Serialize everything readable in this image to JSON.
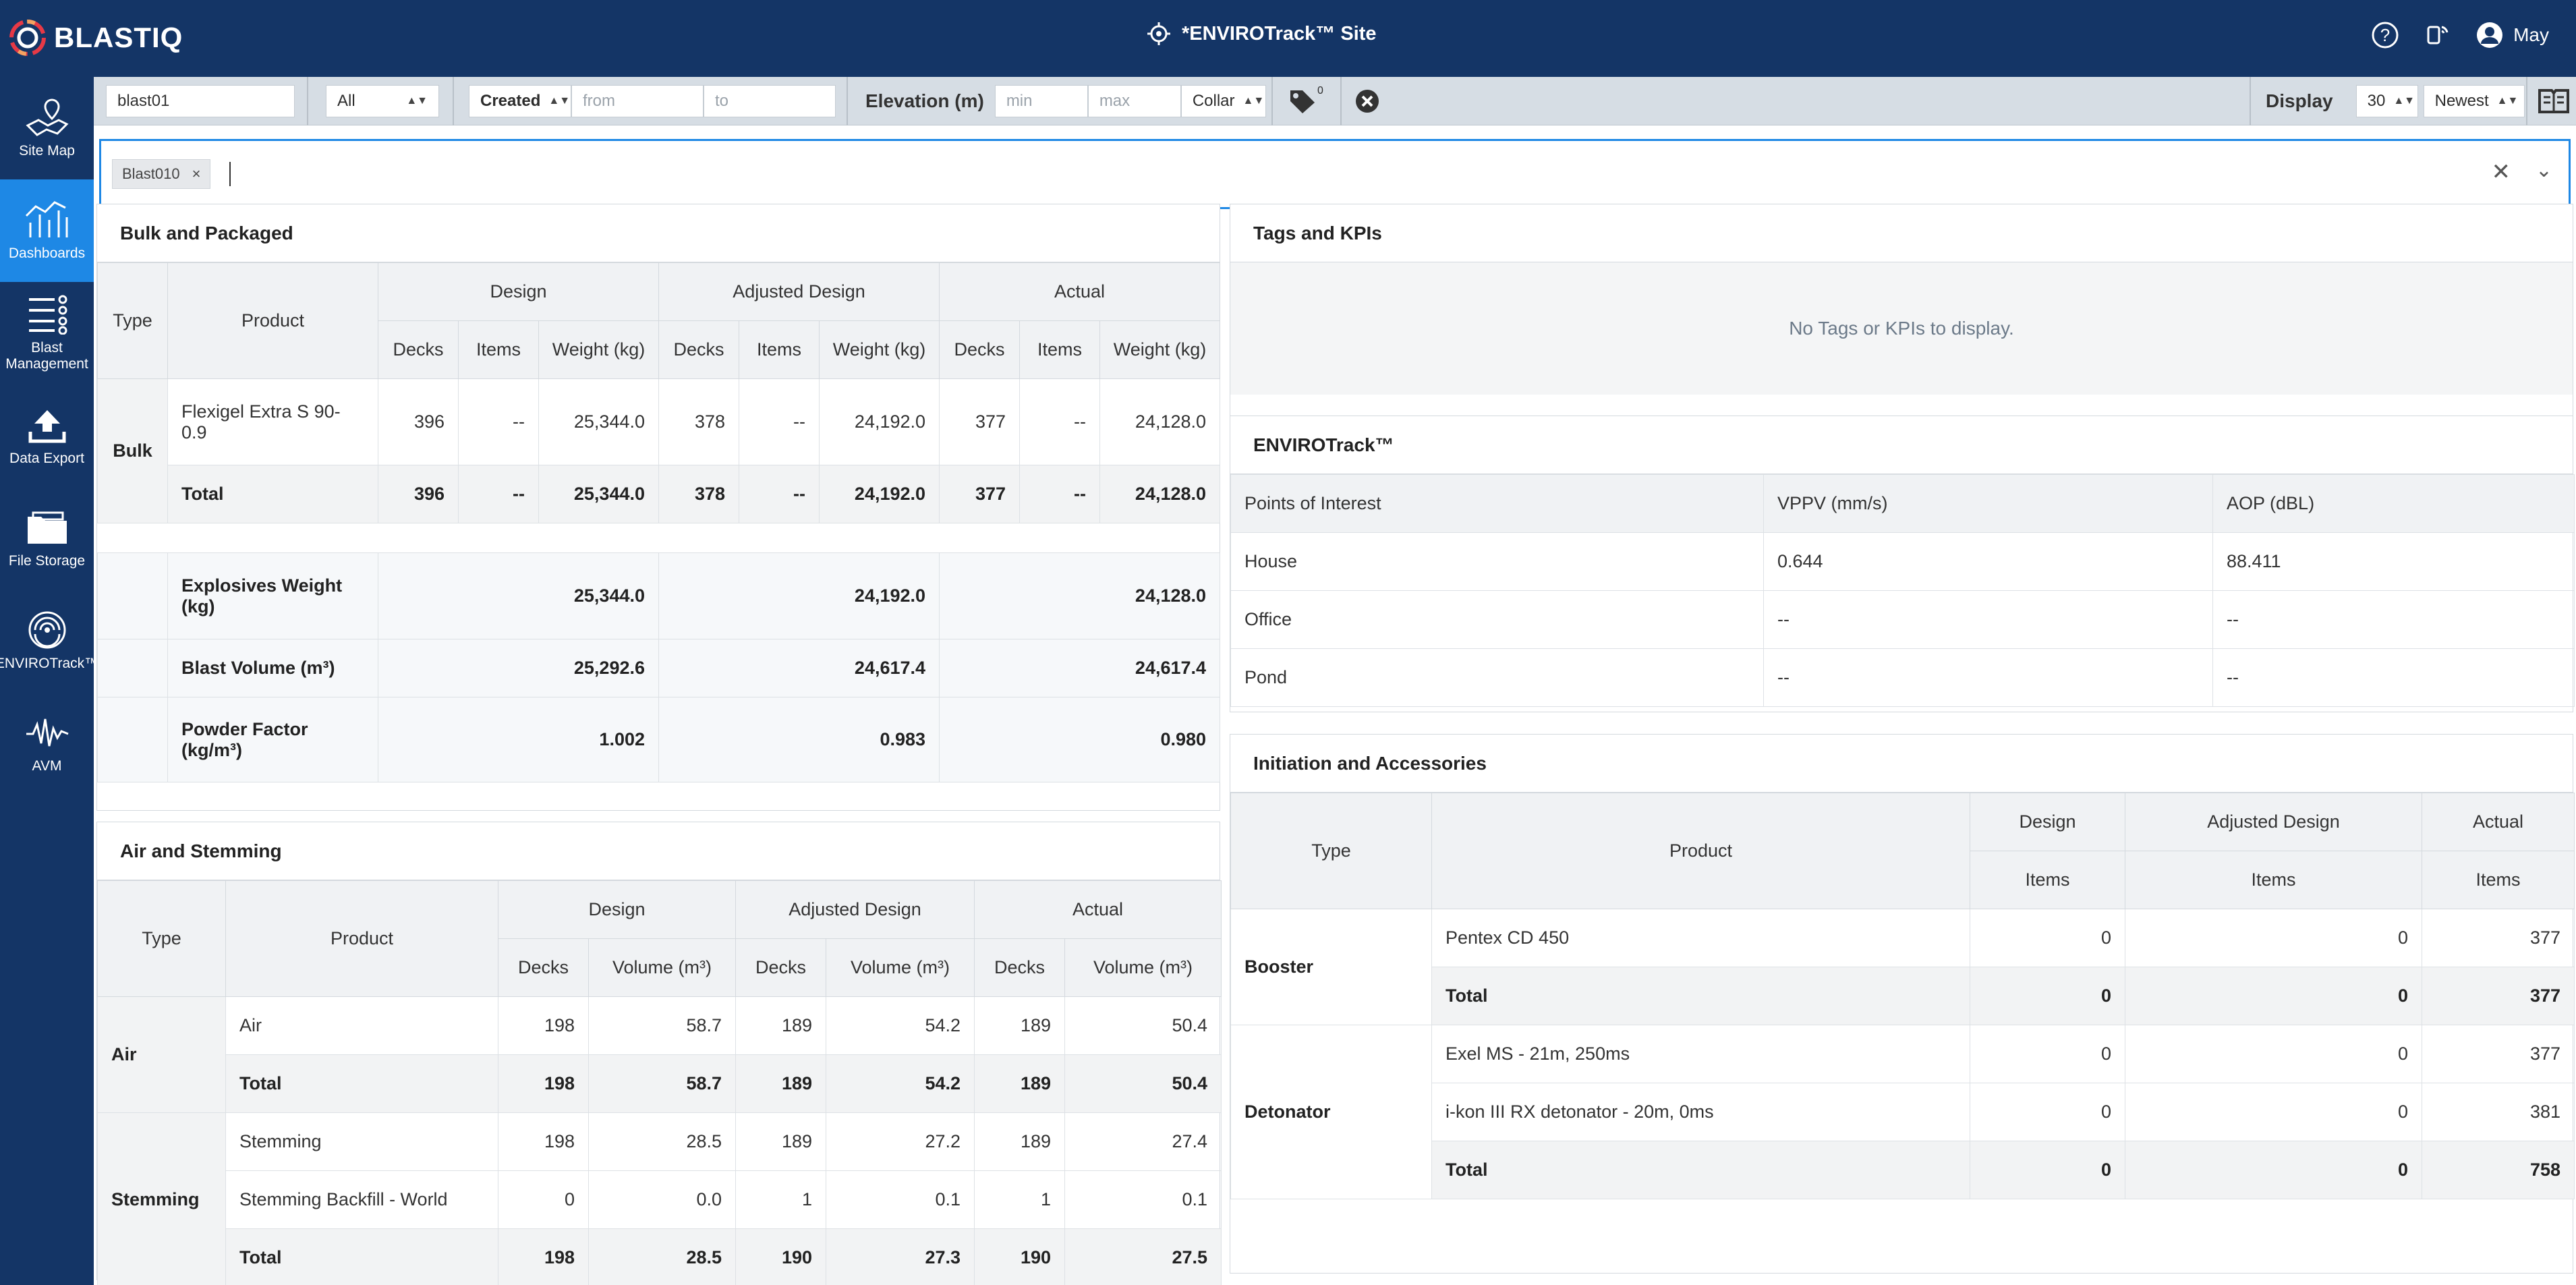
{
  "app": {
    "logo": "BLAST",
    "logo_suffix": "IQ",
    "site_title": "*ENVIROTrack™ Site",
    "user_name": "May"
  },
  "sidebar": {
    "items": [
      {
        "label": "Site Map",
        "icon": "map-icon",
        "active": false
      },
      {
        "label": "Dashboards",
        "icon": "dashboard-icon",
        "active": true
      },
      {
        "label": "Blast Management",
        "icon": "list-icon",
        "active": false
      },
      {
        "label": "Data Export",
        "icon": "upload-icon",
        "active": false
      },
      {
        "label": "File Storage",
        "icon": "folder-icon",
        "active": false
      },
      {
        "label": "ENVIROTrack™",
        "icon": "signal-icon",
        "active": false
      },
      {
        "label": "AVM",
        "icon": "waveform-icon",
        "active": false
      }
    ]
  },
  "filters": {
    "blast_search": "blast01",
    "status_select": "All",
    "date_field": "Created",
    "date_from_placeholder": "from",
    "date_to_placeholder": "to",
    "elevation_label": "Elevation (m)",
    "elevation_min_placeholder": "min",
    "elevation_max_placeholder": "max",
    "elevation_ref": "Collar",
    "tag_count": "0",
    "display_label": "Display",
    "display_count": "30",
    "display_sort": "Newest"
  },
  "tag_selector": {
    "chips": [
      "Blast010"
    ]
  },
  "bulk": {
    "title": "Bulk and Packaged",
    "head_type": "Type",
    "head_product": "Product",
    "groups": [
      "Design",
      "Adjusted Design",
      "Actual"
    ],
    "subheads": {
      "decks": "Decks",
      "items": "Items",
      "weight": "Weight (kg)"
    },
    "type": "Bulk",
    "rows": [
      {
        "product": "Flexigel Extra S 90-0.9",
        "d_decks": "396",
        "d_items": "--",
        "d_weight": "25,344.0",
        "a_decks": "378",
        "a_items": "--",
        "a_weight": "24,192.0",
        "c_decks": "377",
        "c_items": "--",
        "c_weight": "24,128.0"
      }
    ],
    "total": {
      "label": "Total",
      "d_decks": "396",
      "d_items": "--",
      "d_weight": "25,344.0",
      "a_decks": "378",
      "a_items": "--",
      "a_weight": "24,192.0",
      "c_decks": "377",
      "c_items": "--",
      "c_weight": "24,128.0"
    },
    "summary": [
      {
        "label": "Explosives Weight (kg)",
        "design": "25,344.0",
        "adjusted": "24,192.0",
        "actual": "24,128.0"
      },
      {
        "label": "Blast Volume (m³)",
        "design": "25,292.6",
        "adjusted": "24,617.4",
        "actual": "24,617.4"
      },
      {
        "label": "Powder Factor (kg/m³)",
        "design": "1.002",
        "adjusted": "0.983",
        "actual": "0.980"
      }
    ]
  },
  "air": {
    "title": "Air and Stemming",
    "head_type": "Type",
    "head_product": "Product",
    "groups": [
      "Design",
      "Adjusted Design",
      "Actual"
    ],
    "subheads": {
      "decks": "Decks",
      "volume": "Volume (m³)"
    },
    "sections": [
      {
        "type": "Air",
        "rows": [
          {
            "product": "Air",
            "v": [
              "198",
              "58.7",
              "189",
              "54.2",
              "189",
              "50.4"
            ]
          }
        ],
        "total": {
          "label": "Total",
          "v": [
            "198",
            "58.7",
            "189",
            "54.2",
            "189",
            "50.4"
          ]
        }
      },
      {
        "type": "Stemming",
        "rows": [
          {
            "product": "Stemming",
            "v": [
              "198",
              "28.5",
              "189",
              "27.2",
              "189",
              "27.4"
            ]
          },
          {
            "product": "Stemming Backfill - World",
            "v": [
              "0",
              "0.0",
              "1",
              "0.1",
              "1",
              "0.1"
            ]
          }
        ],
        "total": {
          "label": "Total",
          "v": [
            "198",
            "28.5",
            "190",
            "27.3",
            "190",
            "27.5"
          ]
        }
      }
    ]
  },
  "tags": {
    "title": "Tags and KPIs",
    "empty": "No Tags or KPIs to display."
  },
  "envirotrack": {
    "title": "ENVIROTrack™",
    "headers": [
      "Points of Interest",
      "VPPV (mm/s)",
      "AOP (dBL)"
    ],
    "rows": [
      [
        "House",
        "0.644",
        "88.411"
      ],
      [
        "Office",
        "--",
        "--"
      ],
      [
        "Pond",
        "--",
        "--"
      ]
    ]
  },
  "initiation": {
    "title": "Initiation and Accessories",
    "head_type": "Type",
    "head_product": "Product",
    "groups": [
      "Design",
      "Adjusted Design",
      "Actual"
    ],
    "subhead": "Items",
    "sections": [
      {
        "type": "Booster",
        "rows": [
          {
            "product": "Pentex CD 450",
            "v": [
              "0",
              "0",
              "377"
            ]
          }
        ],
        "total": {
          "label": "Total",
          "v": [
            "0",
            "0",
            "377"
          ]
        }
      },
      {
        "type": "Detonator",
        "rows": [
          {
            "product": "Exel MS - 21m, 250ms",
            "v": [
              "0",
              "0",
              "377"
            ]
          },
          {
            "product": "i-kon III RX detonator - 20m, 0ms",
            "v": [
              "0",
              "0",
              "381"
            ]
          }
        ],
        "total": {
          "label": "Total",
          "v": [
            "0",
            "0",
            "758"
          ]
        }
      }
    ]
  },
  "colors": {
    "nav": "#143566",
    "active": "#1e88e5"
  }
}
